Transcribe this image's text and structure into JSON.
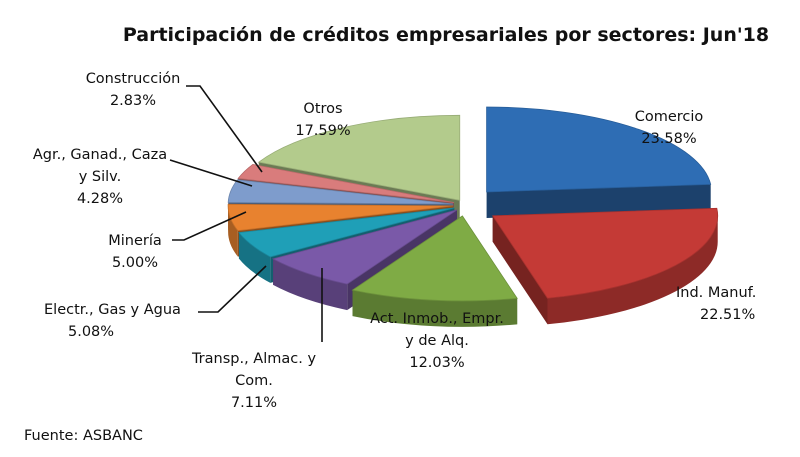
{
  "chart_data": {
    "type": "pie",
    "title": "Participación de créditos empresariales por sectores: Jun'18",
    "source": "Fuente: ASBANC",
    "slices": [
      {
        "label": [
          "Comercio"
        ],
        "value": 23.58,
        "display": "23.58%",
        "color": "#2e6db4"
      },
      {
        "label": [
          "Ind. Manuf."
        ],
        "value": 22.51,
        "display": "22.51%",
        "color": "#c43a36"
      },
      {
        "label": [
          "Act. Inmob., Empr.",
          "y de Alq."
        ],
        "value": 12.03,
        "display": "12.03%",
        "color": "#7fab45"
      },
      {
        "label": [
          "Transp., Almac. y",
          "Com."
        ],
        "value": 7.11,
        "display": "7.11%",
        "color": "#7a59a8"
      },
      {
        "label": [
          "Electr., Gas y Agua"
        ],
        "value": 5.08,
        "display": "5.08%",
        "color": "#1f9fb7"
      },
      {
        "label": [
          "Minería"
        ],
        "value": 5.0,
        "display": "5.00%",
        "color": "#e8822f"
      },
      {
        "label": [
          "Agr., Ganad., Caza",
          "y Silv."
        ],
        "value": 4.28,
        "display": "4.28%",
        "color": "#7e9ccc"
      },
      {
        "label": [
          "Construcción"
        ],
        "value": 2.83,
        "display": "2.83%",
        "color": "#d97c7c"
      },
      {
        "label": [
          "Otros"
        ],
        "value": 17.59,
        "display": "17.59%",
        "color": "#b3cb8c"
      }
    ]
  }
}
